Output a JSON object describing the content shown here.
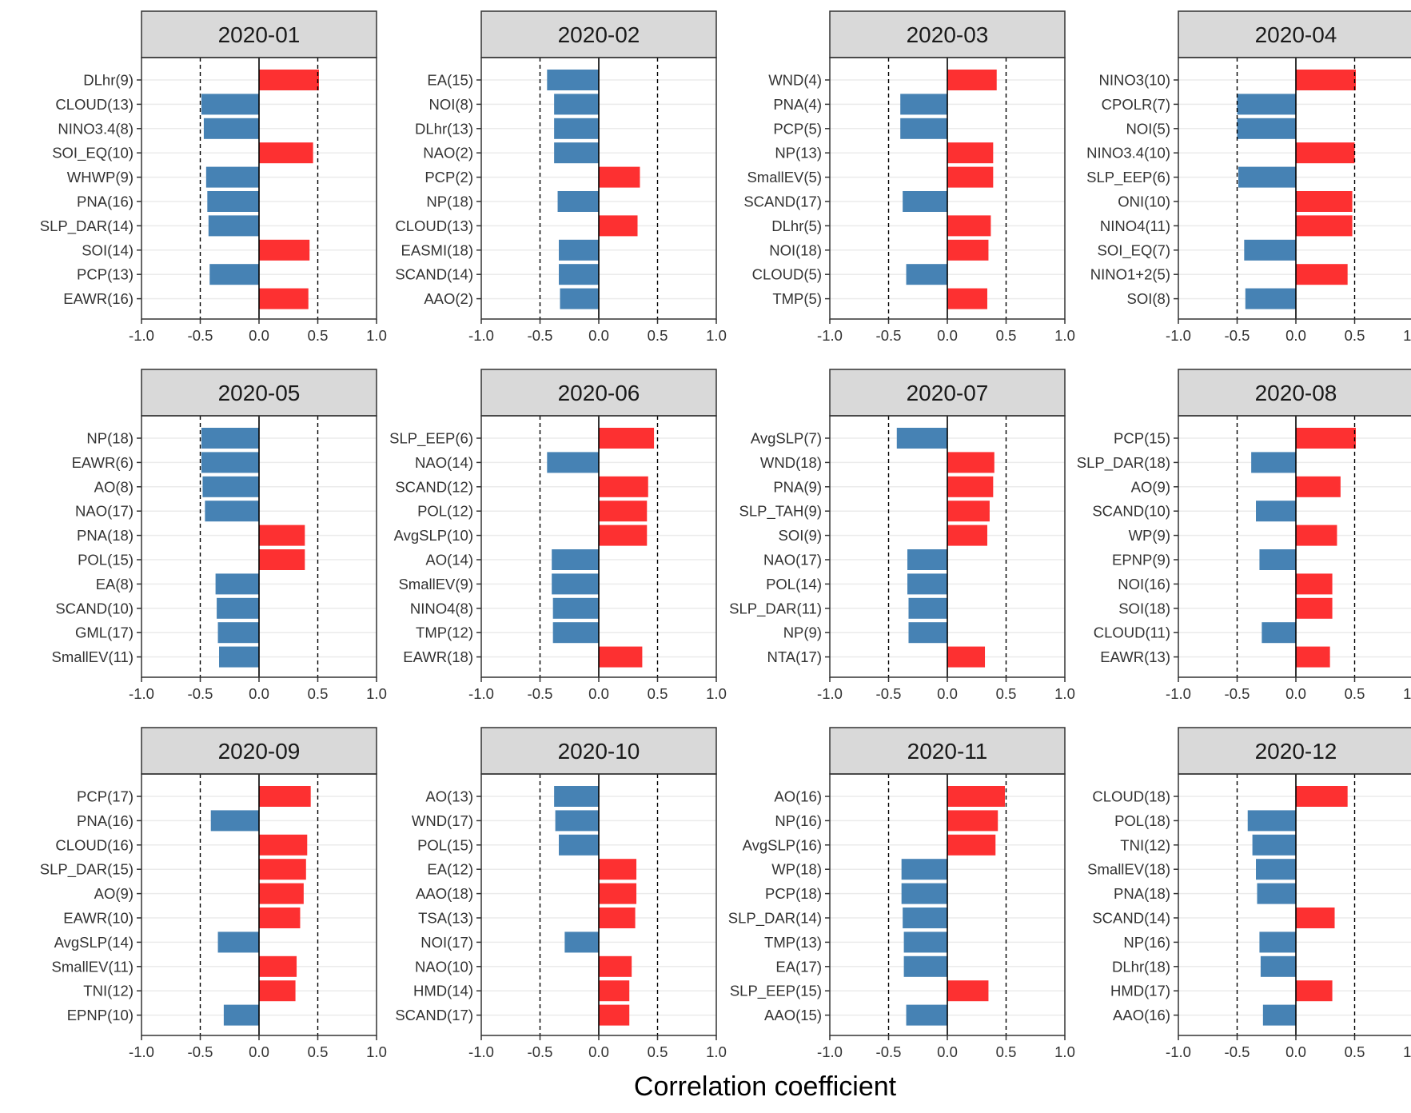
{
  "colors": {
    "positive": "#fd3031",
    "negative": "#4682b4",
    "strip": "#d9d9d9",
    "grid": "#ebebeb",
    "border": "#333333",
    "text": "#333333"
  },
  "x_axis_label": "Correlation coefficient",
  "chart_data": {
    "type": "bar",
    "orientation": "horizontal",
    "xlabel": "Correlation coefficient",
    "xlim": [
      -1.0,
      1.0
    ],
    "x_ticks": [
      "-1.0",
      "-0.5",
      "0.0",
      "0.5",
      "1.0"
    ],
    "reference_lines": [
      -0.5,
      0.5
    ],
    "panels": [
      {
        "title": "2020-01",
        "categories": [
          "DLhr(9)",
          "CLOUD(13)",
          "NINO3.4(8)",
          "SOI_EQ(10)",
          "WHWP(9)",
          "PNA(16)",
          "SLP_DAR(14)",
          "SOI(14)",
          "PCP(13)",
          "EAWR(16)"
        ],
        "values": [
          0.51,
          -0.49,
          -0.47,
          0.46,
          -0.45,
          -0.44,
          -0.43,
          0.43,
          -0.42,
          0.42
        ]
      },
      {
        "title": "2020-02",
        "categories": [
          "EA(15)",
          "NOI(8)",
          "DLhr(13)",
          "NAO(2)",
          "PCP(2)",
          "NP(18)",
          "CLOUD(13)",
          "EASMI(18)",
          "SCAND(14)",
          "AAO(2)"
        ],
        "values": [
          -0.44,
          -0.38,
          -0.38,
          -0.38,
          0.35,
          -0.35,
          0.33,
          -0.34,
          -0.34,
          -0.33
        ]
      },
      {
        "title": "2020-03",
        "categories": [
          "WND(4)",
          "PNA(4)",
          "PCP(5)",
          "NP(13)",
          "SmallEV(5)",
          "SCAND(17)",
          "DLhr(5)",
          "NOI(18)",
          "CLOUD(5)",
          "TMP(5)"
        ],
        "values": [
          0.42,
          -0.4,
          -0.4,
          0.39,
          0.39,
          -0.38,
          0.37,
          0.35,
          -0.35,
          0.34
        ]
      },
      {
        "title": "2020-04",
        "categories": [
          "NINO3(10)",
          "CPOLR(7)",
          "NOI(5)",
          "NINO3.4(10)",
          "SLP_EEP(6)",
          "ONI(10)",
          "NINO4(11)",
          "SOI_EQ(7)",
          "NINO1+2(5)",
          "SOI(8)"
        ],
        "values": [
          0.51,
          -0.5,
          -0.5,
          0.5,
          -0.49,
          0.48,
          0.48,
          -0.44,
          0.44,
          -0.43
        ]
      },
      {
        "title": "2020-05",
        "categories": [
          "NP(18)",
          "EAWR(6)",
          "AO(8)",
          "NAO(17)",
          "PNA(18)",
          "POL(15)",
          "EA(8)",
          "SCAND(10)",
          "GML(17)",
          "SmallEV(11)"
        ],
        "values": [
          -0.49,
          -0.49,
          -0.48,
          -0.46,
          0.39,
          0.39,
          -0.37,
          -0.36,
          -0.35,
          -0.34
        ]
      },
      {
        "title": "2020-06",
        "categories": [
          "SLP_EEP(6)",
          "NAO(14)",
          "SCAND(12)",
          "POL(12)",
          "AvgSLP(10)",
          "AO(14)",
          "SmallEV(9)",
          "NINO4(8)",
          "TMP(12)",
          "EAWR(18)"
        ],
        "values": [
          0.47,
          -0.44,
          0.42,
          0.41,
          0.41,
          -0.4,
          -0.4,
          -0.39,
          -0.39,
          0.37
        ]
      },
      {
        "title": "2020-07",
        "categories": [
          "AvgSLP(7)",
          "WND(18)",
          "PNA(9)",
          "SLP_TAH(9)",
          "SOI(9)",
          "NAO(17)",
          "POL(14)",
          "SLP_DAR(11)",
          "NP(9)",
          "NTA(17)"
        ],
        "values": [
          -0.43,
          0.4,
          0.39,
          0.36,
          0.34,
          -0.34,
          -0.34,
          -0.33,
          -0.33,
          0.32
        ]
      },
      {
        "title": "2020-08",
        "categories": [
          "PCP(15)",
          "SLP_DAR(18)",
          "AO(9)",
          "SCAND(10)",
          "WP(9)",
          "EPNP(9)",
          "NOI(16)",
          "SOI(18)",
          "CLOUD(11)",
          "EAWR(13)"
        ],
        "values": [
          0.51,
          -0.38,
          0.38,
          -0.34,
          0.35,
          -0.31,
          0.31,
          0.31,
          -0.29,
          0.29
        ]
      },
      {
        "title": "2020-09",
        "categories": [
          "PCP(17)",
          "PNA(16)",
          "CLOUD(16)",
          "SLP_DAR(15)",
          "AO(9)",
          "EAWR(10)",
          "AvgSLP(14)",
          "SmallEV(11)",
          "TNI(12)",
          "EPNP(10)"
        ],
        "values": [
          0.44,
          -0.41,
          0.41,
          0.4,
          0.38,
          0.35,
          -0.35,
          0.32,
          0.31,
          -0.3
        ]
      },
      {
        "title": "2020-10",
        "categories": [
          "AO(13)",
          "WND(17)",
          "POL(15)",
          "EA(12)",
          "AAO(18)",
          "TSA(13)",
          "NOI(17)",
          "NAO(10)",
          "HMD(14)",
          "SCAND(17)"
        ],
        "values": [
          -0.38,
          -0.37,
          -0.34,
          0.32,
          0.32,
          0.31,
          -0.29,
          0.28,
          0.26,
          0.26
        ]
      },
      {
        "title": "2020-11",
        "categories": [
          "AO(16)",
          "NP(16)",
          "AvgSLP(16)",
          "WP(18)",
          "PCP(18)",
          "SLP_DAR(14)",
          "TMP(13)",
          "EA(17)",
          "SLP_EEP(15)",
          "AAO(15)"
        ],
        "values": [
          0.49,
          0.43,
          0.41,
          -0.39,
          -0.39,
          -0.38,
          -0.37,
          -0.37,
          0.35,
          -0.35
        ]
      },
      {
        "title": "2020-12",
        "categories": [
          "CLOUD(18)",
          "POL(18)",
          "TNI(12)",
          "SmallEV(18)",
          "PNA(18)",
          "SCAND(14)",
          "NP(16)",
          "DLhr(18)",
          "HMD(17)",
          "AAO(16)"
        ],
        "values": [
          0.44,
          -0.41,
          -0.37,
          -0.34,
          -0.33,
          0.33,
          -0.31,
          -0.3,
          0.31,
          -0.28
        ]
      }
    ]
  }
}
